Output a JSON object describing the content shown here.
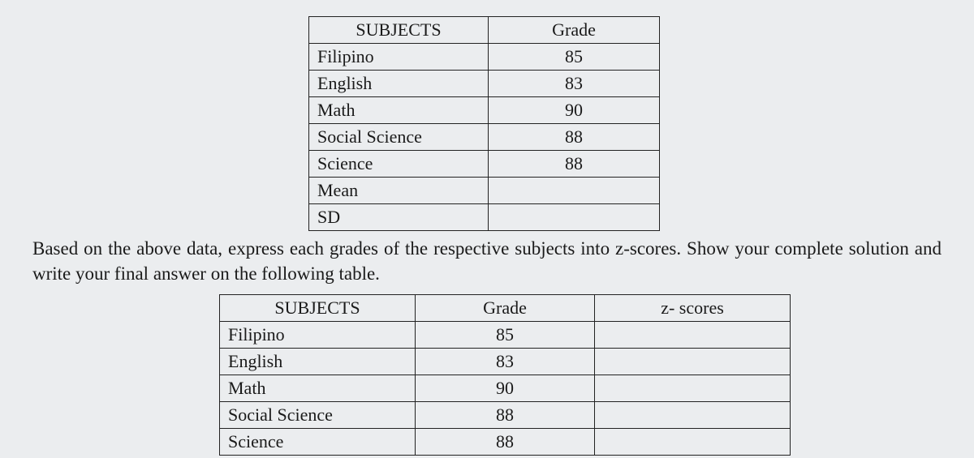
{
  "table1": {
    "headers": {
      "subject": "SUBJECTS",
      "grade": "Grade"
    },
    "rows": [
      {
        "subject": "Filipino",
        "grade": "85"
      },
      {
        "subject": "English",
        "grade": "83"
      },
      {
        "subject": "Math",
        "grade": "90"
      },
      {
        "subject": "Social Science",
        "grade": "88"
      },
      {
        "subject": "Science",
        "grade": "88"
      },
      {
        "subject": "Mean",
        "grade": ""
      },
      {
        "subject": "SD",
        "grade": ""
      }
    ]
  },
  "paragraph": "Based on the above data, express each grades of the respective subjects into z-scores. Show your complete solution and write your final answer on the following table.",
  "table2": {
    "headers": {
      "subject": "SUBJECTS",
      "grade": "Grade",
      "z": "z- scores"
    },
    "rows": [
      {
        "subject": "Filipino",
        "grade": "85",
        "z": ""
      },
      {
        "subject": "English",
        "grade": "83",
        "z": ""
      },
      {
        "subject": "Math",
        "grade": "90",
        "z": ""
      },
      {
        "subject": "Social Science",
        "grade": "88",
        "z": ""
      },
      {
        "subject": "Science",
        "grade": "88",
        "z": ""
      }
    ]
  }
}
